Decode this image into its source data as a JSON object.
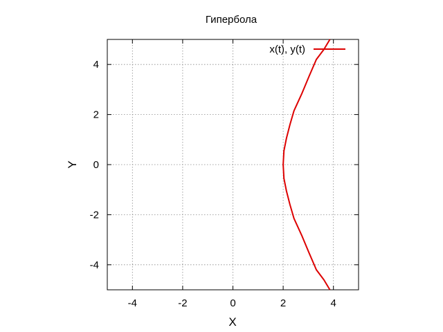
{
  "chart_data": {
    "type": "line",
    "title": "Гипербола",
    "xlabel": "X",
    "ylabel": "Y",
    "xlim": [
      -5,
      5
    ],
    "ylim": [
      -5,
      5
    ],
    "xticks": [
      -4,
      -2,
      0,
      2,
      4
    ],
    "yticks": [
      -4,
      -2,
      0,
      2,
      4
    ],
    "grid": true,
    "legend_position": "top-right",
    "series": [
      {
        "name": "x(t), y(t)",
        "color": "#dd0000",
        "x": [
          3.86,
          3.62,
          3.32,
          3.02,
          2.75,
          2.43,
          2.27,
          2.13,
          2.03,
          2.0,
          2.03,
          2.13,
          2.27,
          2.43,
          2.75,
          3.02,
          3.32,
          3.62,
          3.86
        ],
        "y": [
          -5.0,
          -4.6,
          -4.2,
          -3.5,
          -2.85,
          -2.15,
          -1.6,
          -1.05,
          -0.55,
          0.0,
          0.55,
          1.05,
          1.6,
          2.15,
          2.85,
          3.5,
          4.2,
          4.6,
          5.0
        ]
      }
    ]
  }
}
